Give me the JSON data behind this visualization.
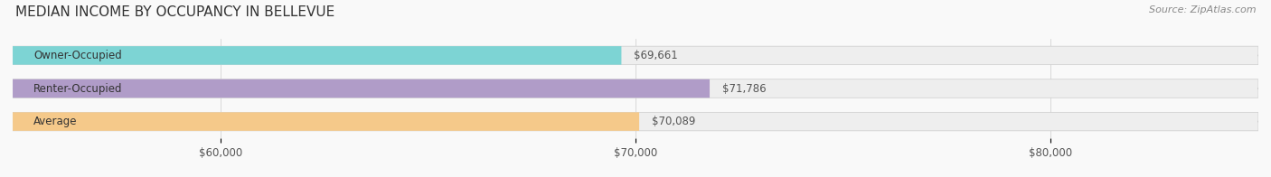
{
  "title": "MEDIAN INCOME BY OCCUPANCY IN BELLEVUE",
  "source": "Source: ZipAtlas.com",
  "categories": [
    "Owner-Occupied",
    "Renter-Occupied",
    "Average"
  ],
  "values": [
    69661,
    71786,
    70089
  ],
  "bar_colors": [
    "#7dd4d4",
    "#b09cc8",
    "#f5c98a"
  ],
  "bar_bg_color": "#eeeeee",
  "value_labels": [
    "$69,661",
    "$71,786",
    "$70,089"
  ],
  "xlim": [
    55000,
    85000
  ],
  "xticks": [
    60000,
    70000,
    80000
  ],
  "xtick_labels": [
    "$60,000",
    "$70,000",
    "$80,000"
  ],
  "title_fontsize": 11,
  "source_fontsize": 8,
  "label_fontsize": 8.5,
  "value_fontsize": 8.5,
  "tick_fontsize": 8.5,
  "bar_height": 0.55,
  "figsize": [
    14.06,
    1.96
  ],
  "dpi": 100,
  "bg_color": "#f9f9f9"
}
